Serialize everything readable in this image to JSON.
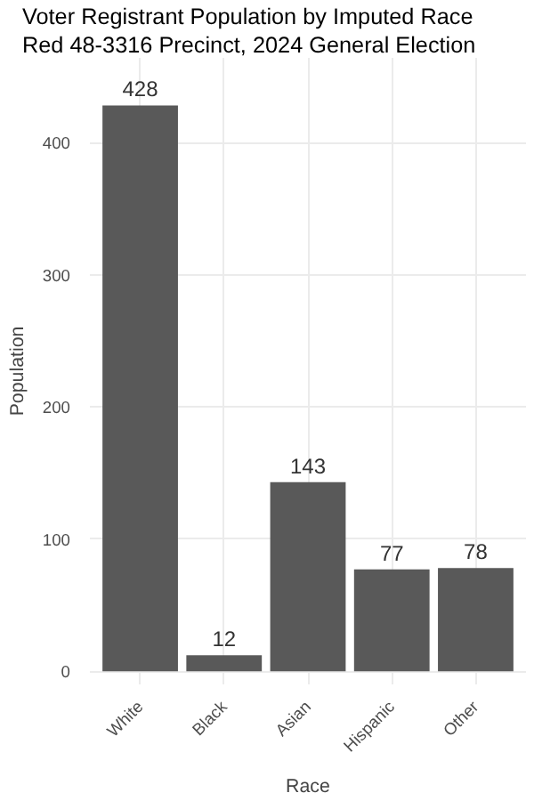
{
  "chart_data": {
    "type": "bar",
    "title": "Voter Registrant Population by Imputed Race",
    "subtitle": "Red 48-3316 Precinct,  2024 General Election",
    "xlabel": "Race",
    "ylabel": "Population",
    "categories": [
      "White",
      "Black",
      "Asian",
      "Hispanic",
      "Other"
    ],
    "values": [
      428,
      12,
      143,
      77,
      78
    ],
    "color": "#595959",
    "ylim": [
      -10,
      464
    ],
    "yticks": [
      0,
      100,
      200,
      300,
      400
    ],
    "grid": true,
    "data_labels": true
  }
}
